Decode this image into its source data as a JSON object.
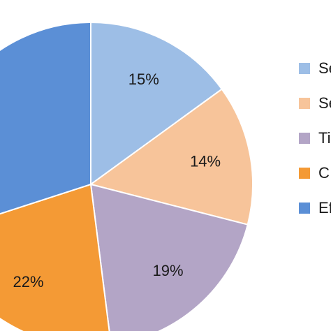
{
  "chart_data": {
    "type": "pie",
    "title": "",
    "slices": [
      {
        "label": "Se",
        "value": 15,
        "display": "15%",
        "color": "#9DBEE6"
      },
      {
        "label": "Se",
        "value": 14,
        "display": "14%",
        "color": "#F7C49A"
      },
      {
        "label": "Ti",
        "value": 19,
        "display": "19%",
        "color": "#B3A5C6"
      },
      {
        "label": "C",
        "value": 22,
        "display": "22%",
        "color": "#F49A35"
      },
      {
        "label": "Ef",
        "value": 30,
        "display": "",
        "color": "#5B8FD6"
      }
    ],
    "start_angle_deg": 0,
    "direction": "clockwise",
    "legend": {
      "position": "right",
      "entries": [
        "Se",
        "Se",
        "Ti",
        "C",
        "Ef"
      ]
    }
  }
}
